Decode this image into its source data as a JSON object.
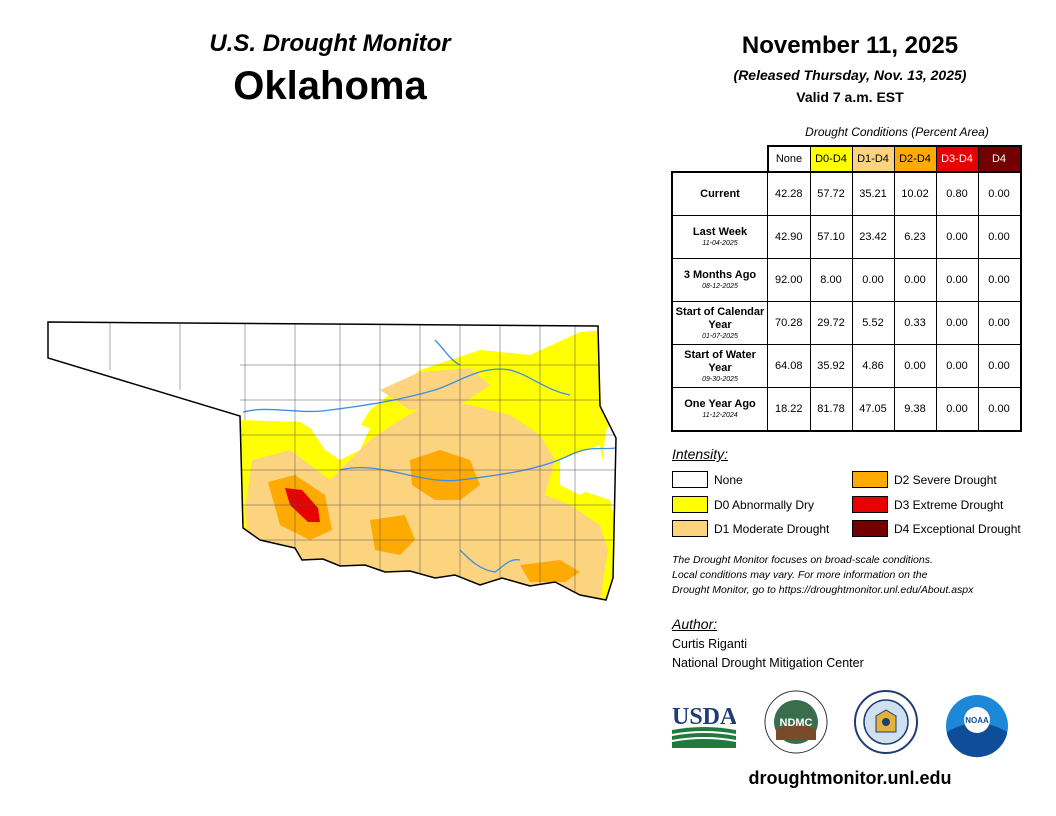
{
  "header": {
    "product": "U.S. Drought Monitor",
    "state": "Oklahoma",
    "date": "November 11, 2025",
    "released": "(Released Thursday, Nov. 13, 2025)",
    "valid": "Valid 7 a.m. EST"
  },
  "table": {
    "caption": "Drought Conditions (Percent Area)",
    "columns": [
      {
        "label": "None",
        "bg": "#ffffff",
        "fg": "#000000"
      },
      {
        "label": "D0-D4",
        "bg": "#ffff00",
        "fg": "#000000"
      },
      {
        "label": "D1-D4",
        "bg": "#fcd37f",
        "fg": "#000000"
      },
      {
        "label": "D2-D4",
        "bg": "#ffaa00",
        "fg": "#000000"
      },
      {
        "label": "D3-D4",
        "bg": "#e60000",
        "fg": "#ffffff"
      },
      {
        "label": "D4",
        "bg": "#730000",
        "fg": "#ffffff"
      }
    ],
    "rows": [
      {
        "label": "Current",
        "date": "",
        "values": [
          "42.28",
          "57.72",
          "35.21",
          "10.02",
          "0.80",
          "0.00"
        ]
      },
      {
        "label": "Last Week",
        "date": "11-04-2025",
        "values": [
          "42.90",
          "57.10",
          "23.42",
          "6.23",
          "0.00",
          "0.00"
        ]
      },
      {
        "label": "3 Months Ago",
        "date": "08-12-2025",
        "values": [
          "92.00",
          "8.00",
          "0.00",
          "0.00",
          "0.00",
          "0.00"
        ]
      },
      {
        "label": "Start of Calendar Year",
        "date": "01-07-2025",
        "values": [
          "70.28",
          "29.72",
          "5.52",
          "0.33",
          "0.00",
          "0.00"
        ]
      },
      {
        "label": "Start of Water Year",
        "date": "09-30-2025",
        "values": [
          "64.08",
          "35.92",
          "4.86",
          "0.00",
          "0.00",
          "0.00"
        ]
      },
      {
        "label": "One Year Ago",
        "date": "11-12-2024",
        "values": [
          "18.22",
          "81.78",
          "47.05",
          "9.38",
          "0.00",
          "0.00"
        ]
      }
    ]
  },
  "legend": {
    "title": "Intensity:",
    "items": [
      {
        "label": "None",
        "color": "#ffffff"
      },
      {
        "label": "D0 Abnormally Dry",
        "color": "#ffff00"
      },
      {
        "label": "D1 Moderate Drought",
        "color": "#fcd37f"
      },
      {
        "label": "D2 Severe Drought",
        "color": "#ffaa00"
      },
      {
        "label": "D3 Extreme Drought",
        "color": "#e60000"
      },
      {
        "label": "D4 Exceptional Drought",
        "color": "#730000"
      }
    ]
  },
  "note": {
    "line1": "The Drought Monitor focuses on broad-scale conditions.",
    "line2": "Local conditions may vary. For more information on the",
    "line3": "Drought Monitor, go to https://droughtmonitor.unl.edu/About.aspx"
  },
  "author": {
    "title": "Author:",
    "name": "Curtis Riganti",
    "org": "National Drought Mitigation Center"
  },
  "logos": {
    "usda": "USDA",
    "ndmc": "NDMC",
    "noaa": "NOAA",
    "ndmc_ring": "NATIONAL DROUGHT MITIGATION CENTER · UNIVERSITY OF NEBRASKA"
  },
  "footer": {
    "url": "droughtmonitor.unl.edu"
  }
}
